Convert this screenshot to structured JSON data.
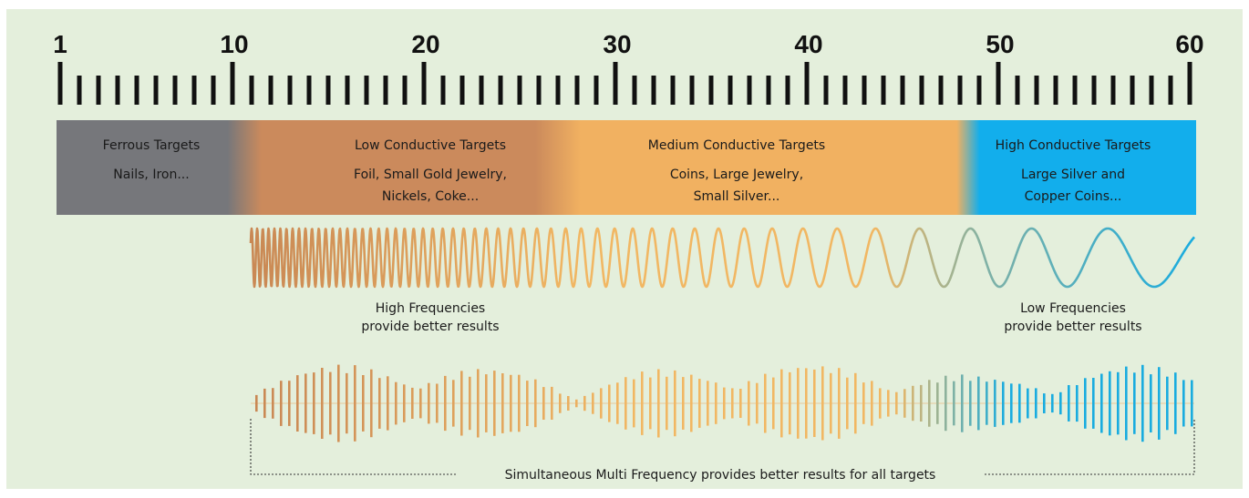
{
  "scale": {
    "min": 1,
    "max": 60,
    "labels": [
      "1",
      "10",
      "20",
      "30",
      "40",
      "50",
      "60"
    ]
  },
  "bands": [
    {
      "title": "Ferrous Targets",
      "examples": [
        "Nails, Iron..."
      ]
    },
    {
      "title": "Low Conductive Targets",
      "examples": [
        "Foil, Small Gold Jewelry,",
        "Nickels, Coke..."
      ]
    },
    {
      "title": "Medium Conductive Targets",
      "examples": [
        "Coins, Large Jewelry,",
        "Small Silver..."
      ]
    },
    {
      "title": "High Conductive Targets",
      "examples": [
        "Large Silver and",
        "Copper Coins..."
      ]
    }
  ],
  "frequencies": {
    "high": [
      "High Frequencies",
      "provide better results"
    ],
    "low": [
      "Low Frequencies",
      "provide better results"
    ]
  },
  "multi_frequency": {
    "label": "Simultaneous Multi Frequency provides better results for all targets"
  },
  "colors": {
    "background": "#e4efdc",
    "ferrous": "#76777b",
    "low_conductive": "#cb8a5c",
    "medium_conductive": "#f1b161",
    "high_conductive": "#12aeec",
    "wave_start": "#c98854",
    "wave_mid": "#f1b763",
    "wave_end": "#19acdf"
  }
}
